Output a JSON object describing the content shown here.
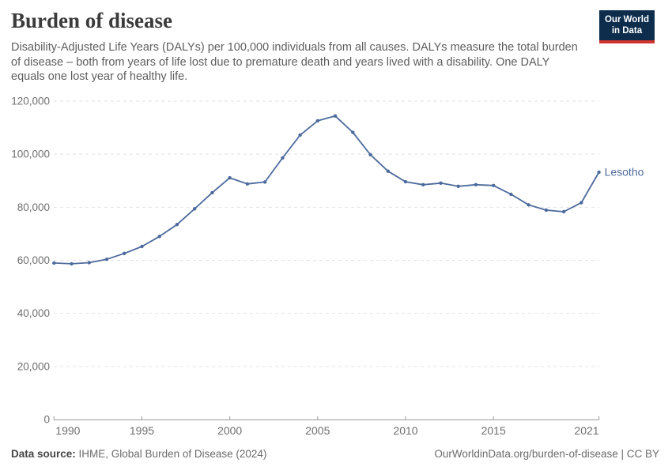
{
  "header": {
    "title": "Burden of disease",
    "subtitle": "Disability-Adjusted Life Years (DALYs) per 100,000 individuals from all causes. DALYs measure the total burden of disease – both from years of life lost due to premature death and years lived with a disability. One DALY equals one lost year of healthy life."
  },
  "logo": {
    "line1": "Our World",
    "line2": "in Data",
    "bg_color": "#0E2D4D",
    "stripe_color": "#D0342C"
  },
  "chart_data": {
    "type": "line",
    "title": "Burden of disease",
    "xlabel": "",
    "ylabel": "DALYs per 100,000 individuals",
    "x": [
      1990,
      1991,
      1992,
      1993,
      1994,
      1995,
      1996,
      1997,
      1998,
      1999,
      2000,
      2001,
      2002,
      2003,
      2004,
      2005,
      2006,
      2007,
      2008,
      2009,
      2010,
      2011,
      2012,
      2013,
      2014,
      2015,
      2016,
      2017,
      2018,
      2019,
      2020,
      2021
    ],
    "series": [
      {
        "name": "Lesotho",
        "color": "#4C6A9C",
        "values": [
          59000,
          58700,
          59100,
          60400,
          62600,
          65200,
          69000,
          73500,
          79400,
          85500,
          91100,
          88800,
          89500,
          98600,
          107200,
          112600,
          114400,
          108200,
          99800,
          93600,
          89600,
          88500,
          89100,
          87900,
          88500,
          88200,
          84900,
          80900,
          78900,
          78300,
          81700,
          93200
        ]
      }
    ],
    "ylim": [
      0,
      120000
    ],
    "yticks": [
      0,
      20000,
      40000,
      60000,
      80000,
      100000,
      120000
    ],
    "xticks": [
      1990,
      1995,
      2000,
      2005,
      2010,
      2015,
      2021
    ],
    "grid": "dashed-horizontal",
    "legend_position": "end-of-line-label"
  },
  "footer": {
    "data_source_label": "Data source:",
    "data_source_value": " IHME, Global Burden of Disease (2024)",
    "credit": "OurWorldinData.org/burden-of-disease | CC BY"
  },
  "colors": {
    "line": "#4C6A9C",
    "grid": "#E2E2E2",
    "axis": "#9C9C9C",
    "tick_label": "#6F6F6F",
    "title": "#3B3B3B",
    "subtitle": "#5E5E5E",
    "footer": "#6B6B6B"
  }
}
